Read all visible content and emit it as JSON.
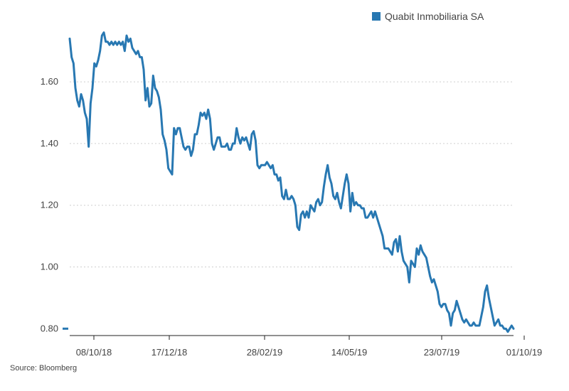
{
  "legend": {
    "label": "Quabit Inmobiliaria SA",
    "color": "#2878b2"
  },
  "source": "Source: Bloomberg",
  "chart_data": {
    "type": "line",
    "title": "",
    "xlabel": "",
    "ylabel": "",
    "ylim": [
      0.78,
      1.78
    ],
    "y_ticks": [
      "0.80",
      "1.00",
      "1.20",
      "1.40",
      "1.60"
    ],
    "y_tick_values": [
      0.8,
      1.0,
      1.2,
      1.4,
      1.6
    ],
    "x_ticks": [
      "08/10/18",
      "17/12/18",
      "28/02/19",
      "14/05/19",
      "23/07/19",
      "01/10/19"
    ],
    "grid": "horizontal-dotted",
    "legend_position": "top-right",
    "series": [
      {
        "name": "Quabit Inmobiliaria SA",
        "color": "#2878b2",
        "values": [
          1.74,
          1.68,
          1.66,
          1.58,
          1.54,
          1.52,
          1.56,
          1.54,
          1.5,
          1.48,
          1.39,
          1.53,
          1.58,
          1.66,
          1.65,
          1.67,
          1.7,
          1.75,
          1.76,
          1.73,
          1.73,
          1.72,
          1.73,
          1.72,
          1.73,
          1.72,
          1.73,
          1.72,
          1.73,
          1.7,
          1.75,
          1.73,
          1.74,
          1.71,
          1.7,
          1.69,
          1.7,
          1.68,
          1.68,
          1.64,
          1.54,
          1.58,
          1.52,
          1.53,
          1.62,
          1.58,
          1.57,
          1.55,
          1.51,
          1.43,
          1.41,
          1.38,
          1.32,
          1.31,
          1.3,
          1.45,
          1.43,
          1.45,
          1.45,
          1.42,
          1.39,
          1.38,
          1.39,
          1.39,
          1.36,
          1.38,
          1.43,
          1.43,
          1.46,
          1.5,
          1.49,
          1.5,
          1.48,
          1.51,
          1.48,
          1.4,
          1.38,
          1.4,
          1.42,
          1.42,
          1.39,
          1.39,
          1.39,
          1.4,
          1.38,
          1.38,
          1.4,
          1.4,
          1.45,
          1.42,
          1.4,
          1.42,
          1.41,
          1.42,
          1.4,
          1.38,
          1.43,
          1.44,
          1.41,
          1.33,
          1.32,
          1.33,
          1.33,
          1.33,
          1.34,
          1.33,
          1.32,
          1.33,
          1.3,
          1.3,
          1.28,
          1.29,
          1.23,
          1.22,
          1.25,
          1.22,
          1.22,
          1.23,
          1.22,
          1.2,
          1.13,
          1.12,
          1.17,
          1.18,
          1.16,
          1.18,
          1.16,
          1.2,
          1.19,
          1.18,
          1.21,
          1.22,
          1.2,
          1.21,
          1.26,
          1.3,
          1.33,
          1.29,
          1.27,
          1.23,
          1.22,
          1.24,
          1.21,
          1.19,
          1.23,
          1.27,
          1.3,
          1.27,
          1.18,
          1.24,
          1.2,
          1.21,
          1.2,
          1.2,
          1.19,
          1.19,
          1.16,
          1.16,
          1.17,
          1.18,
          1.16,
          1.18,
          1.16,
          1.14,
          1.12,
          1.1,
          1.06,
          1.06,
          1.06,
          1.05,
          1.04,
          1.08,
          1.09,
          1.05,
          1.1,
          1.05,
          1.02,
          1.01,
          1.0,
          0.95,
          1.02,
          1.01,
          1.0,
          1.06,
          1.04,
          1.07,
          1.05,
          1.04,
          1.03,
          1.0,
          0.97,
          0.95,
          0.96,
          0.94,
          0.92,
          0.88,
          0.87,
          0.88,
          0.88,
          0.86,
          0.85,
          0.81,
          0.85,
          0.86,
          0.89,
          0.87,
          0.85,
          0.83,
          0.82,
          0.83,
          0.82,
          0.81,
          0.81,
          0.82,
          0.81,
          0.81,
          0.81,
          0.84,
          0.87,
          0.92,
          0.94,
          0.9,
          0.87,
          0.84,
          0.81,
          0.82,
          0.83,
          0.81,
          0.81,
          0.8,
          0.8,
          0.79,
          0.8,
          0.81,
          0.8
        ]
      }
    ]
  }
}
